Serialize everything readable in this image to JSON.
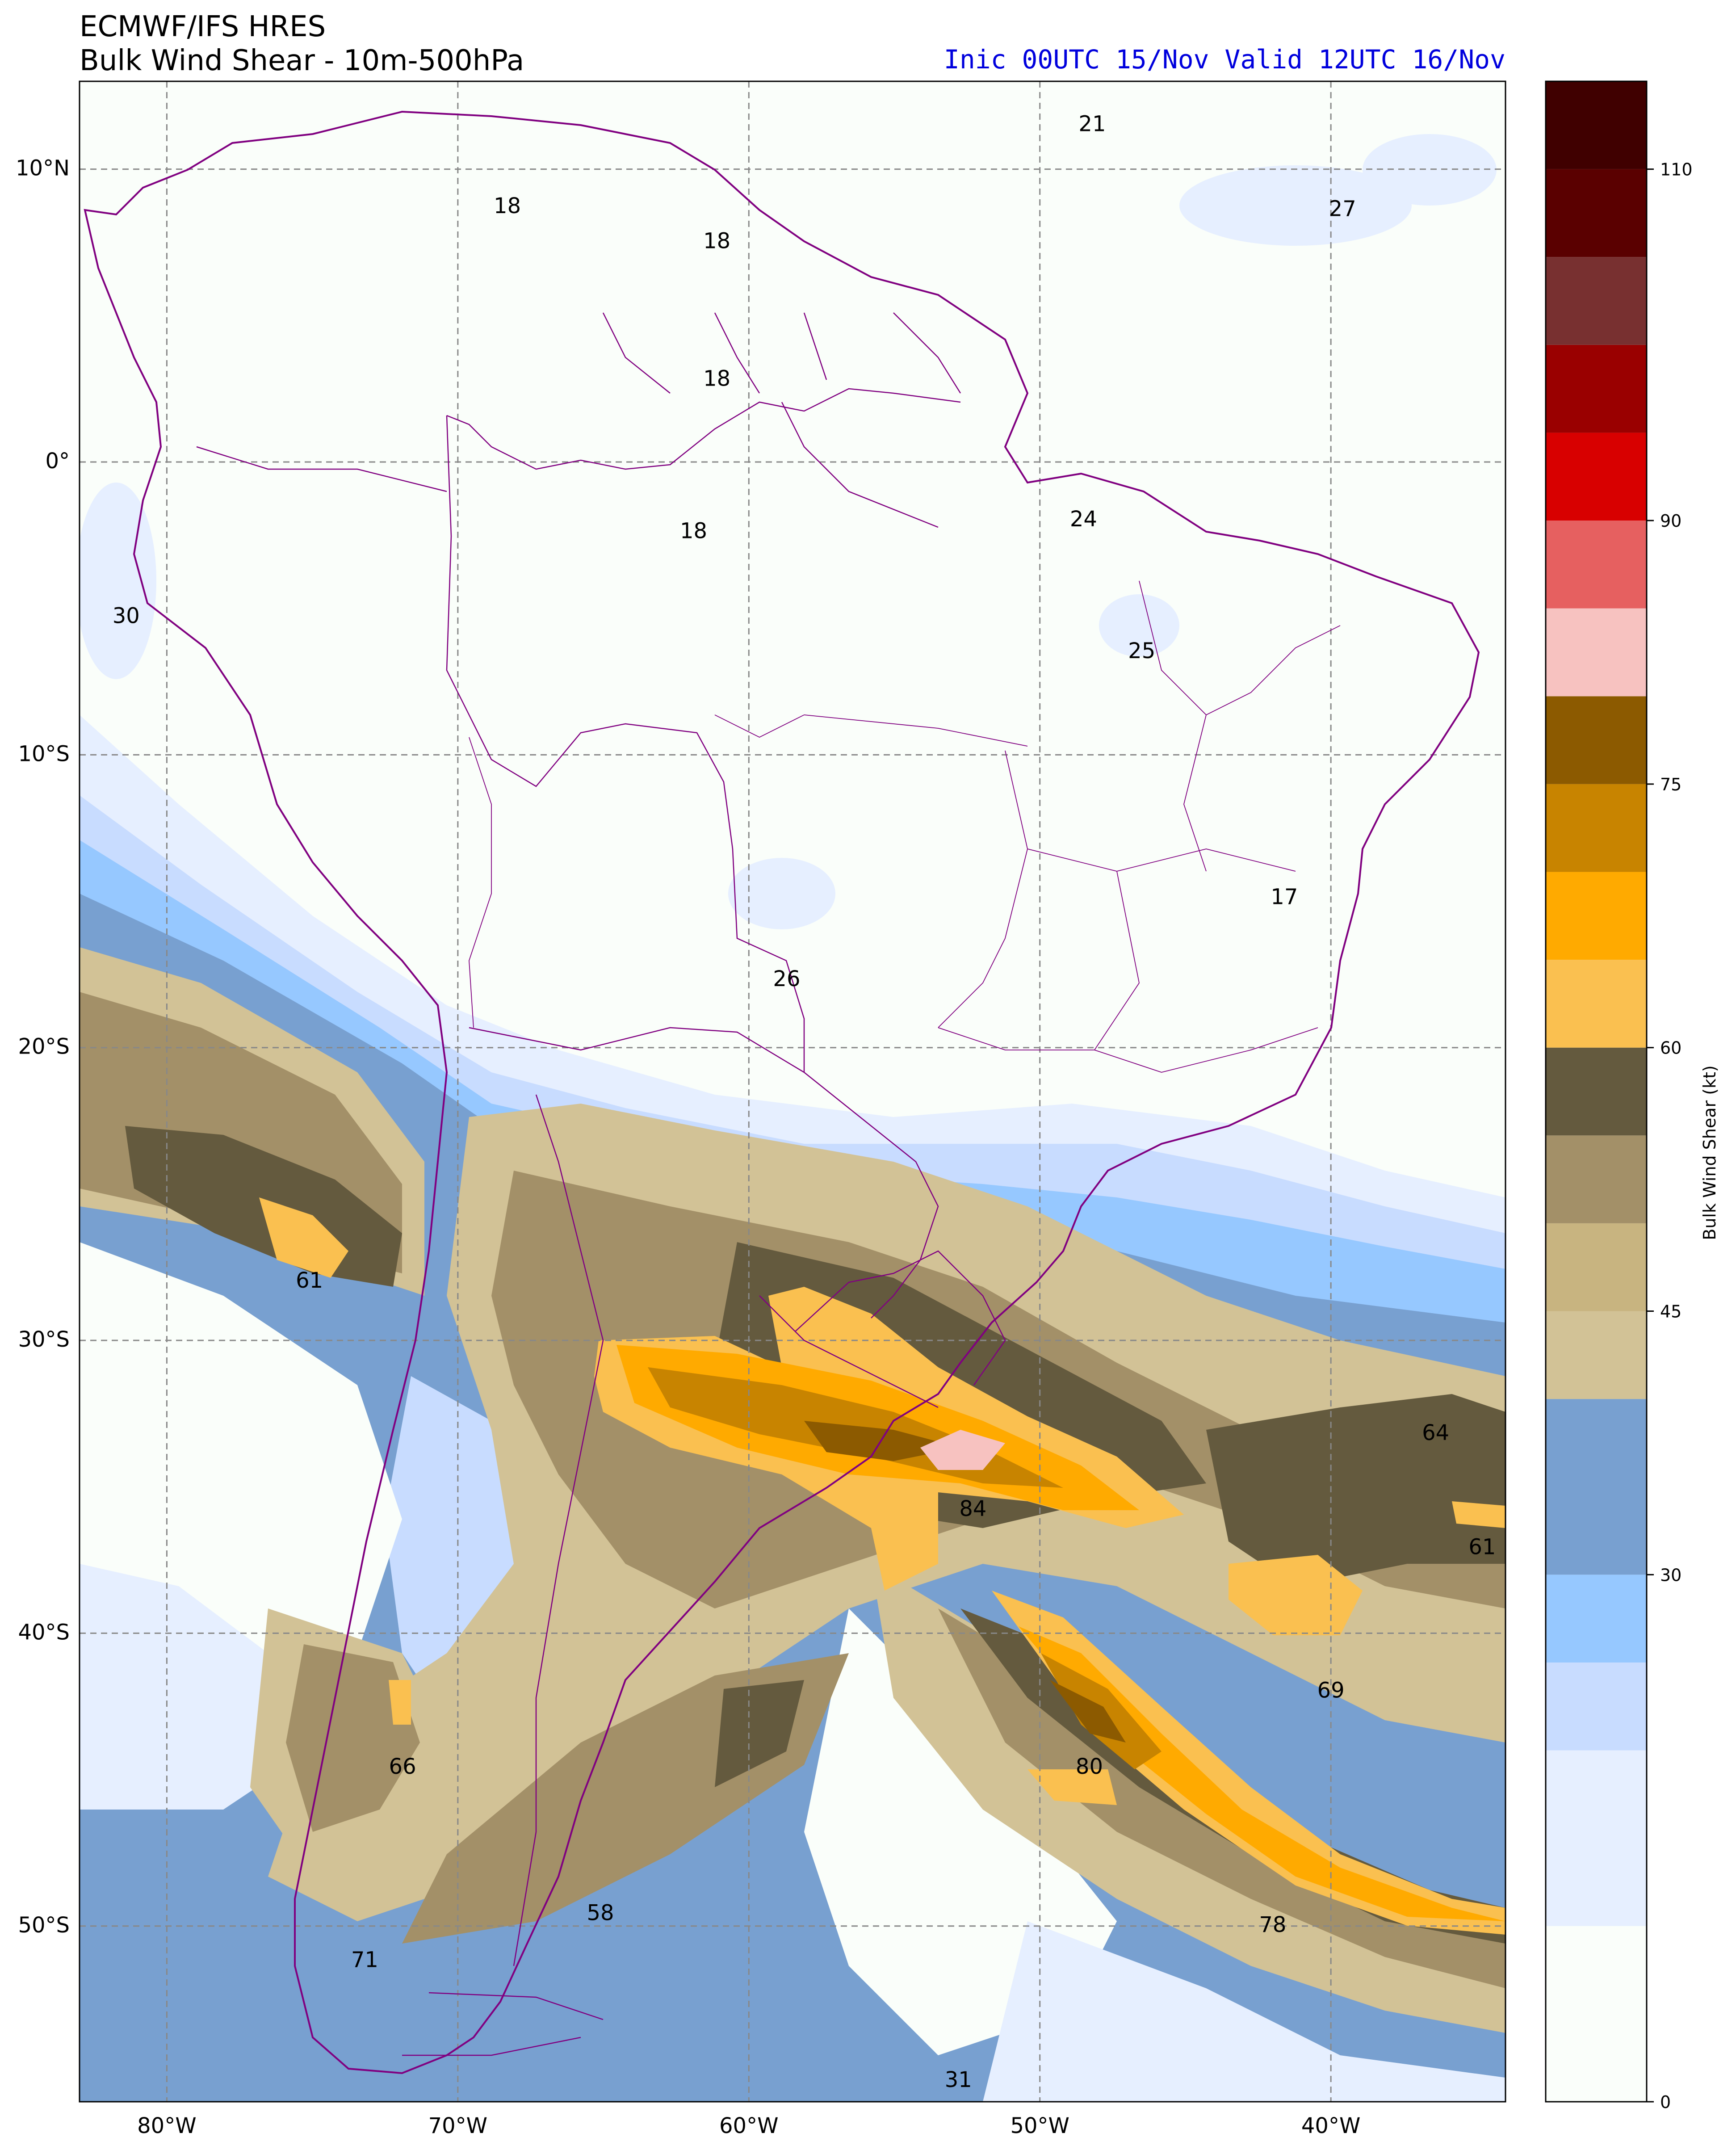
{
  "header": {
    "model": "ECMWF/IFS HRES",
    "product": "Bulk Wind Shear - 10m-500hPa",
    "valid_line": "Inic 00UTC 15/Nov  Valid 12UTC 16/Nov"
  },
  "map": {
    "lon_range": [
      -83,
      -34
    ],
    "lat_range": [
      -56,
      13
    ],
    "lon_ticks": [
      {
        "v": -80,
        "label": "80°W"
      },
      {
        "v": -70,
        "label": "70°W"
      },
      {
        "v": -60,
        "label": "60°W"
      },
      {
        "v": -50,
        "label": "50°W"
      },
      {
        "v": -40,
        "label": "40°W"
      }
    ],
    "lat_ticks": [
      {
        "v": 10,
        "label": "10°N"
      },
      {
        "v": 0,
        "label": "0°"
      },
      {
        "v": -10,
        "label": "10°S"
      },
      {
        "v": -20,
        "label": "20°S"
      },
      {
        "v": -30,
        "label": "30°S"
      },
      {
        "v": -40,
        "label": "40°S"
      },
      {
        "v": -50,
        "label": "50°S"
      }
    ],
    "gridlines": "dashed grey",
    "border_color": "#800080",
    "point_labels": [
      {
        "text": "21",
        "lon": -48.2,
        "lat": 11.5
      },
      {
        "text": "27",
        "lon": -39.6,
        "lat": 8.6
      },
      {
        "text": "18",
        "lon": -68.3,
        "lat": 8.7
      },
      {
        "text": "18",
        "lon": -61.1,
        "lat": 7.5
      },
      {
        "text": "18",
        "lon": -61.1,
        "lat": 2.8
      },
      {
        "text": "18",
        "lon": -61.9,
        "lat": -2.4
      },
      {
        "text": "24",
        "lon": -48.5,
        "lat": -2.0
      },
      {
        "text": "30",
        "lon": -81.4,
        "lat": -5.3
      },
      {
        "text": "25",
        "lon": -46.5,
        "lat": -6.5
      },
      {
        "text": "17",
        "lon": -41.6,
        "lat": -14.9
      },
      {
        "text": "26",
        "lon": -58.7,
        "lat": -17.7
      },
      {
        "text": "61",
        "lon": -75.1,
        "lat": -28.0
      },
      {
        "text": "64",
        "lon": -36.4,
        "lat": -33.2
      },
      {
        "text": "84",
        "lon": -52.3,
        "lat": -35.8
      },
      {
        "text": "61",
        "lon": -34.8,
        "lat": -37.1
      },
      {
        "text": "69",
        "lon": -40.0,
        "lat": -42.0
      },
      {
        "text": "66",
        "lon": -71.9,
        "lat": -44.6
      },
      {
        "text": "80",
        "lon": -48.3,
        "lat": -44.6
      },
      {
        "text": "58",
        "lon": -65.1,
        "lat": -49.6
      },
      {
        "text": "78",
        "lon": -42.0,
        "lat": -50.0
      },
      {
        "text": "71",
        "lon": -73.2,
        "lat": -51.2
      },
      {
        "text": "31",
        "lon": -52.8,
        "lat": -55.3
      }
    ]
  },
  "colorbar": {
    "label": "Bulk Wind Shear (kt)",
    "ticks": [
      {
        "v": 0,
        "label": "0"
      },
      {
        "v": 30,
        "label": "30"
      },
      {
        "v": 45,
        "label": "45"
      },
      {
        "v": 60,
        "label": "60"
      },
      {
        "v": 75,
        "label": "75"
      },
      {
        "v": 90,
        "label": "90"
      },
      {
        "v": 110,
        "label": "110"
      }
    ],
    "levels": [
      {
        "lo": 0,
        "hi": 10,
        "color": "#fafefa"
      },
      {
        "lo": 10,
        "hi": 20,
        "color": "#e6efff"
      },
      {
        "lo": 20,
        "hi": 25,
        "color": "#c8dcff"
      },
      {
        "lo": 25,
        "hi": 30,
        "color": "#96c8ff"
      },
      {
        "lo": 30,
        "hi": 40,
        "color": "#78a0d0"
      },
      {
        "lo": 40,
        "hi": 45,
        "color": "#d2c296"
      },
      {
        "lo": 45,
        "hi": 50,
        "color": "#c8b480"
      },
      {
        "lo": 50,
        "hi": 55,
        "color": "#a39068"
      },
      {
        "lo": 55,
        "hi": 60,
        "color": "#645a3e"
      },
      {
        "lo": 60,
        "hi": 65,
        "color": "#fac050"
      },
      {
        "lo": 65,
        "hi": 70,
        "color": "#ffaa00"
      },
      {
        "lo": 70,
        "hi": 75,
        "color": "#c88400"
      },
      {
        "lo": 75,
        "hi": 80,
        "color": "#8c5a00"
      },
      {
        "lo": 80,
        "hi": 85,
        "color": "#f7c2c0"
      },
      {
        "lo": 85,
        "hi": 90,
        "color": "#e66060"
      },
      {
        "lo": 90,
        "hi": 95,
        "color": "#d80000"
      },
      {
        "lo": 95,
        "hi": 100,
        "color": "#9a0000"
      },
      {
        "lo": 100,
        "hi": 105,
        "color": "#783030"
      },
      {
        "lo": 105,
        "hi": 110,
        "color": "#5a0000"
      },
      {
        "lo": 110,
        "hi": 115,
        "color": "#400000"
      }
    ]
  },
  "chart_data": {
    "type": "heatmap",
    "title": "Bulk Wind Shear - 10m-500hPa",
    "units": "kt",
    "x": {
      "name": "longitude",
      "range": [
        -83,
        -34
      ]
    },
    "y": {
      "name": "latitude",
      "range": [
        -56,
        13
      ]
    },
    "maxima": [
      {
        "text": "84",
        "lon": -52.3,
        "lat": -35.8
      },
      {
        "text": "80",
        "lon": -48.3,
        "lat": -44.6
      },
      {
        "text": "78",
        "lon": -42.0,
        "lat": -50.0
      },
      {
        "text": "71",
        "lon": -73.2,
        "lat": -51.2
      },
      {
        "text": "69",
        "lon": -40.0,
        "lat": -42.0
      },
      {
        "text": "66",
        "lon": -71.9,
        "lat": -44.6
      },
      {
        "text": "64",
        "lon": -36.4,
        "lat": -33.2
      },
      {
        "text": "61",
        "lon": -75.1,
        "lat": -28.0
      },
      {
        "text": "61",
        "lon": -34.8,
        "lat": -37.1
      },
      {
        "text": "58",
        "lon": -65.1,
        "lat": -49.6
      }
    ]
  }
}
